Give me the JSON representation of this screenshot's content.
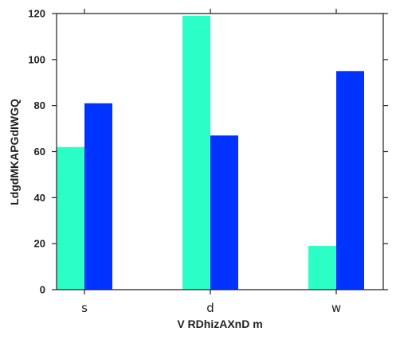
{
  "chart_data": {
    "type": "bar",
    "categories": [
      "s",
      "d",
      "w"
    ],
    "series": [
      {
        "values": [
          62,
          119,
          19
        ],
        "color": "#2cffc6"
      },
      {
        "values": [
          81,
          67,
          95
        ],
        "color": "#0033ff"
      }
    ],
    "xlabel": "V RDhizAXnD m",
    "ylabel": "LdgdMKAPGdIWGQ",
    "ylim": [
      0,
      120
    ],
    "yticks": [
      "0",
      "20",
      "40",
      "60",
      "80",
      "100",
      "120"
    ],
    "grid": false,
    "legend": "none"
  }
}
